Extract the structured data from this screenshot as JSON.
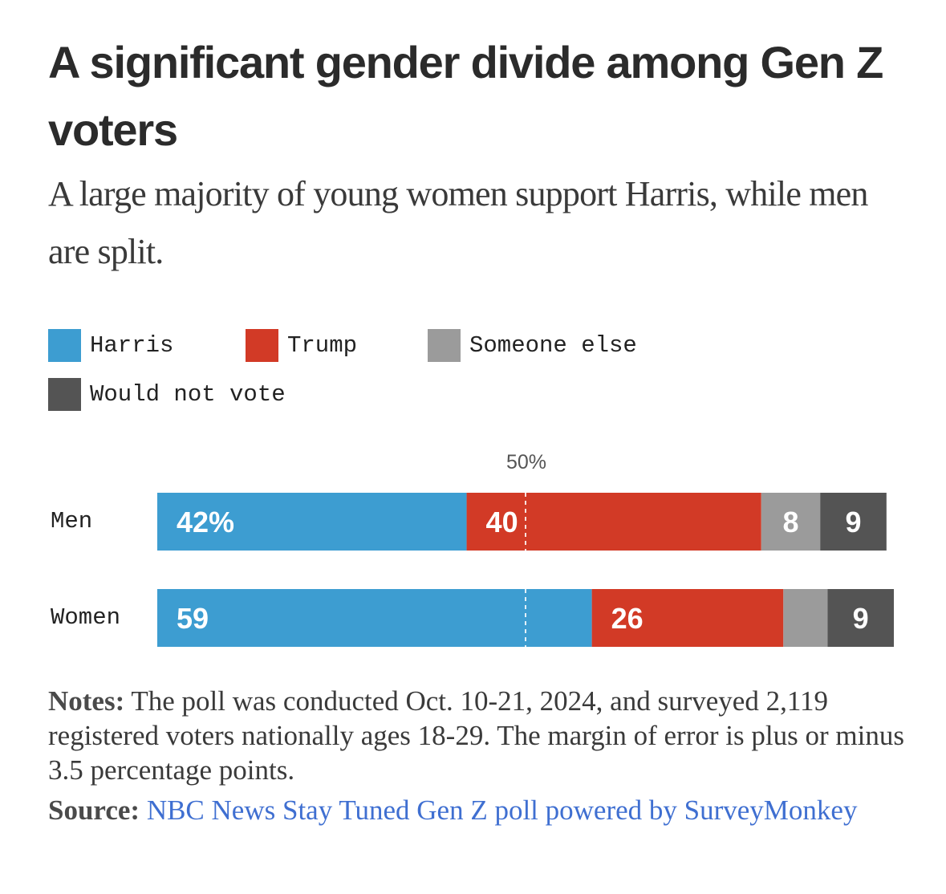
{
  "title": "A significant gender divide among Gen Z voters",
  "subtitle": "A large majority of young women support Harris, while men are split.",
  "legend": [
    {
      "label": "Harris",
      "color": "#3d9dd1"
    },
    {
      "label": "Trump",
      "color": "#d23a26"
    },
    {
      "label": "Someone else",
      "color": "#9b9b9b"
    },
    {
      "label": "Would not vote",
      "color": "#545454"
    }
  ],
  "chart_data": {
    "type": "bar",
    "orientation": "horizontal-stacked",
    "categories": [
      "Men",
      "Women"
    ],
    "series": [
      {
        "name": "Harris",
        "values": [
          42,
          59
        ],
        "labels": [
          "42%",
          "59"
        ],
        "color": "#3d9dd1"
      },
      {
        "name": "Trump",
        "values": [
          40,
          26
        ],
        "labels": [
          "40",
          "26"
        ],
        "color": "#d23a26"
      },
      {
        "name": "Someone else",
        "values": [
          8,
          6
        ],
        "labels": [
          "8",
          ""
        ],
        "color": "#9b9b9b"
      },
      {
        "name": "Would not vote",
        "values": [
          9,
          9
        ],
        "labels": [
          "9",
          "9"
        ],
        "color": "#545454"
      }
    ],
    "reference_line": {
      "value": 50,
      "label": "50%"
    }
  },
  "notes": {
    "label": "Notes:",
    "text": "The poll was conducted Oct. 10-21, 2024, and surveyed 2,119 registered voters nationally ages 18-29. The margin of error is plus or minus 3.5 percentage points."
  },
  "source": {
    "label": "Source:",
    "text": "NBC News Stay Tuned Gen Z poll powered by SurveyMonkey"
  }
}
